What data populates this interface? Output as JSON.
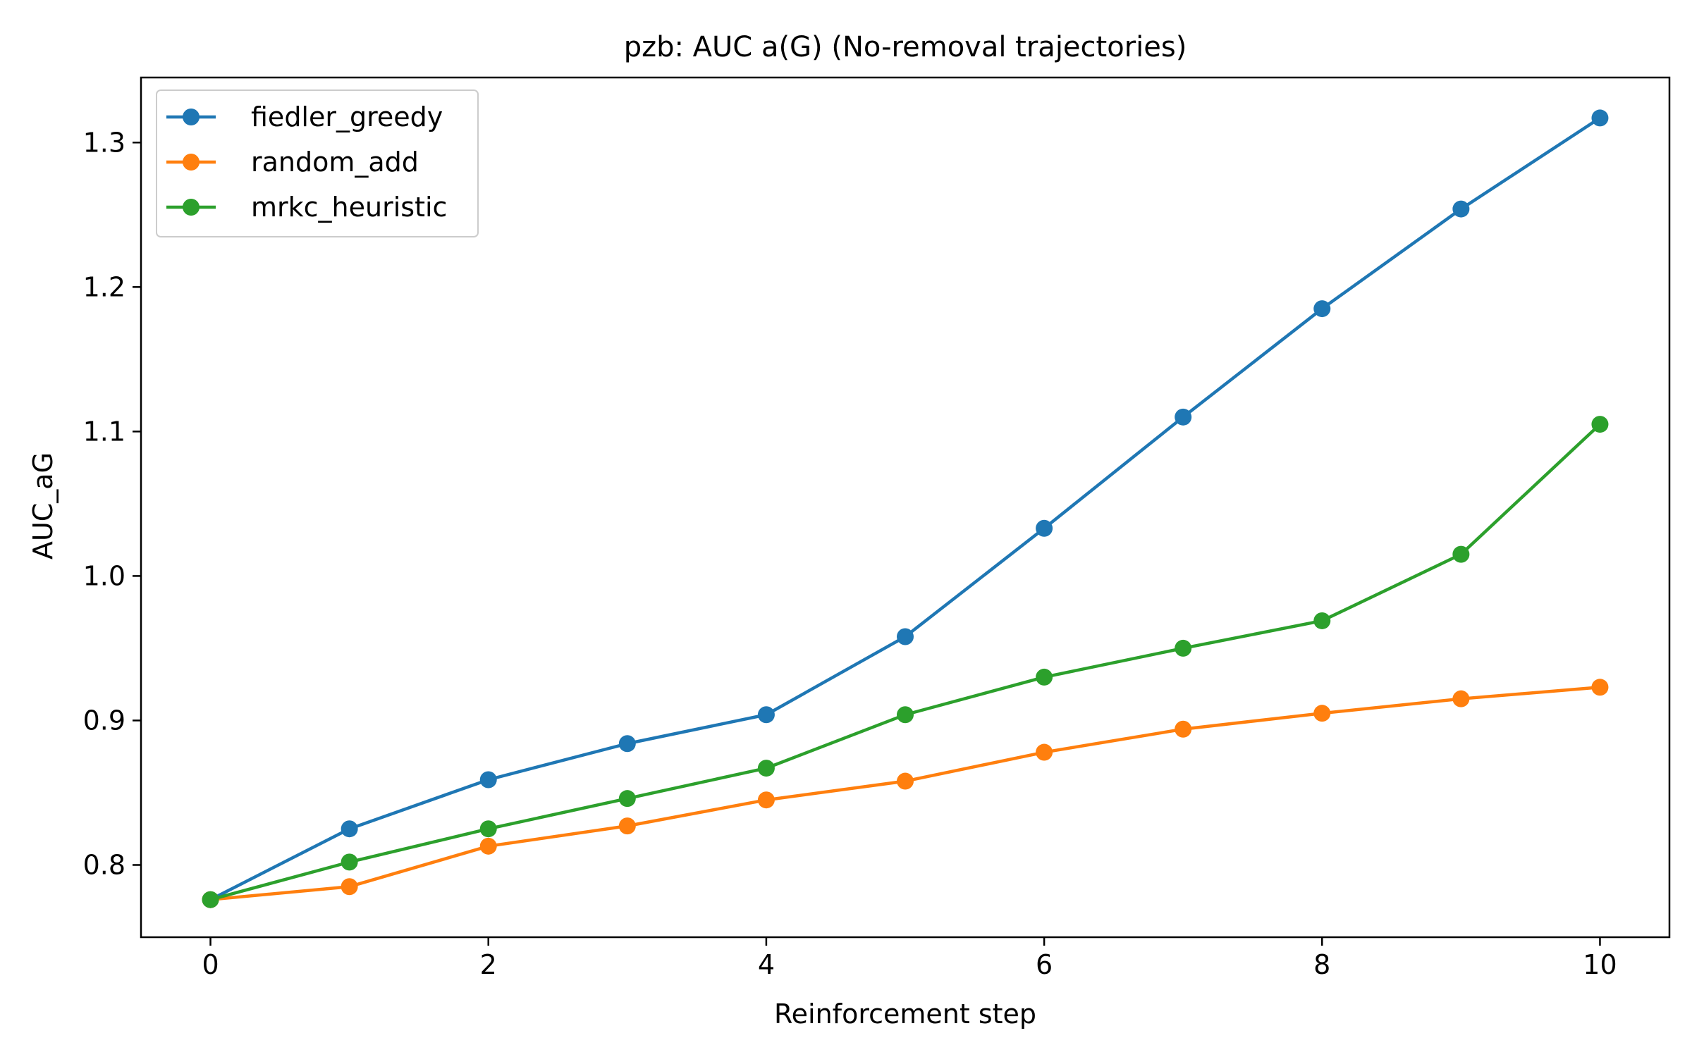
{
  "chart_data": {
    "type": "line",
    "title": "pzb: AUC a(G) (No-removal trajectories)",
    "xlabel": "Reinforcement step",
    "ylabel": "AUC_aG",
    "x": [
      0,
      1,
      2,
      3,
      4,
      5,
      6,
      7,
      8,
      9,
      10
    ],
    "xlim": [
      -0.5,
      10.5
    ],
    "ylim": [
      0.75,
      1.345
    ],
    "xticks": [
      0,
      2,
      4,
      6,
      8,
      10
    ],
    "yticks": [
      0.8,
      0.9,
      1.0,
      1.1,
      1.2,
      1.3
    ],
    "ytick_labels": [
      "0.8",
      "0.9",
      "1.0",
      "1.1",
      "1.2",
      "1.3"
    ],
    "grid": false,
    "legend_position": "upper-left",
    "series": [
      {
        "name": "fiedler_greedy",
        "color": "#1f77b4",
        "values": [
          0.776,
          0.825,
          0.859,
          0.884,
          0.904,
          0.958,
          1.033,
          1.11,
          1.185,
          1.254,
          1.317
        ]
      },
      {
        "name": "random_add",
        "color": "#ff7f0e",
        "values": [
          0.776,
          0.785,
          0.813,
          0.827,
          0.845,
          0.858,
          0.878,
          0.894,
          0.905,
          0.915,
          0.923
        ]
      },
      {
        "name": "mrkc_heuristic",
        "color": "#2ca02c",
        "values": [
          0.776,
          0.802,
          0.825,
          0.846,
          0.867,
          0.904,
          0.93,
          0.95,
          0.969,
          1.015,
          1.105
        ]
      }
    ]
  }
}
